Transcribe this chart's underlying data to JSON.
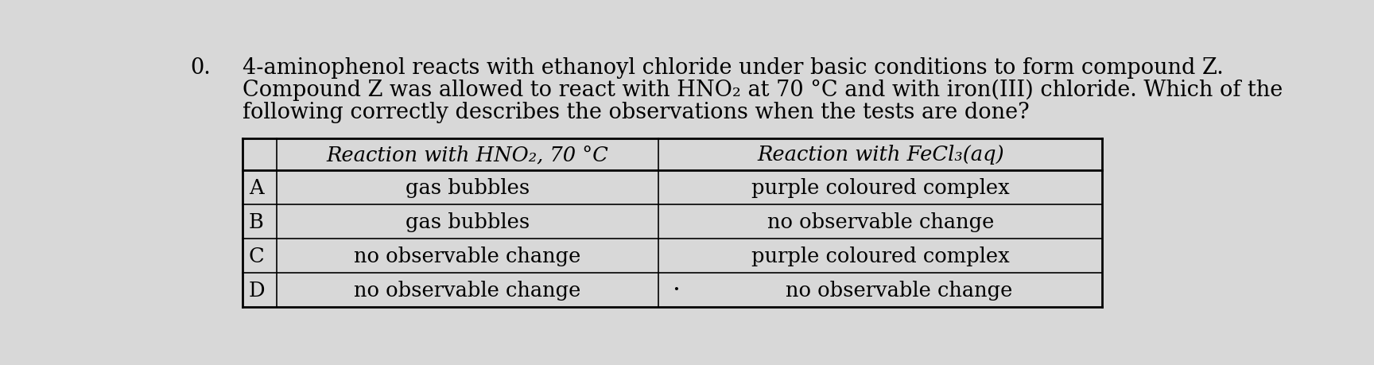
{
  "question_number": "0.",
  "question_text_line1": "4-aminophenol reacts with ethanoyl chloride under basic conditions to form compound Z.",
  "question_text_line2": "Compound Z was allowed to react with HNO₂ at 70 °C and with iron(III) chloride. Which of the",
  "question_text_line3": "following correctly describes the observations when the tests are done?",
  "col1_header": "Reaction with HNO₂, 70 °C",
  "col2_header": "Reaction with FeCl₃(aq)",
  "rows": [
    {
      "label": "A",
      "col1": "gas bubbles",
      "col2": "purple coloured complex"
    },
    {
      "label": "B",
      "col1": "gas bubbles",
      "col2": "no observable change"
    },
    {
      "label": "C",
      "col1": "no observable change",
      "col2": "purple coloured complex"
    },
    {
      "label": "D",
      "col1": "no observable change",
      "col2": "no observable change",
      "dot": true
    }
  ],
  "bg_color": "#d8d8d8",
  "table_bg": "#d8d8d8",
  "text_color": "#000000",
  "font_size_question": 19.5,
  "font_size_table": 18.5
}
